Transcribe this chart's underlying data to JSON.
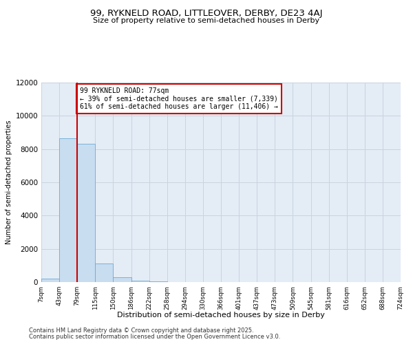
{
  "title_line1": "99, RYKNELD ROAD, LITTLEOVER, DERBY, DE23 4AJ",
  "title_line2": "Size of property relative to semi-detached houses in Derby",
  "xlabel": "Distribution of semi-detached houses by size in Derby",
  "ylabel": "Number of semi-detached properties",
  "footer_line1": "Contains HM Land Registry data © Crown copyright and database right 2025.",
  "footer_line2": "Contains public sector information licensed under the Open Government Licence v3.0.",
  "property_bin_index": 2,
  "property_label": "99 RYKNELD ROAD: 77sqm",
  "pct_smaller": 39,
  "n_smaller": 7339,
  "pct_larger": 61,
  "n_larger": 11406,
  "property_type": "semi-detached",
  "bin_labels": [
    "7sqm",
    "43sqm",
    "79sqm",
    "115sqm",
    "150sqm",
    "186sqm",
    "222sqm",
    "258sqm",
    "294sqm",
    "330sqm",
    "366sqm",
    "401sqm",
    "437sqm",
    "473sqm",
    "509sqm",
    "545sqm",
    "581sqm",
    "616sqm",
    "652sqm",
    "688sqm",
    "724sqm"
  ],
  "bar_values": [
    200,
    8650,
    8300,
    1100,
    300,
    90,
    25,
    4,
    0,
    0,
    0,
    0,
    0,
    0,
    0,
    0,
    0,
    0,
    0,
    0
  ],
  "bar_color": "#c9ddf0",
  "bar_edge_color": "#6aaad4",
  "grid_color": "#c8d4e0",
  "bg_color": "#e4ecf5",
  "vline_color": "#cc0000",
  "annotation_box_color": "#cc0000",
  "ylim": [
    0,
    12000
  ],
  "yticks": [
    0,
    2000,
    4000,
    6000,
    8000,
    10000,
    12000
  ]
}
